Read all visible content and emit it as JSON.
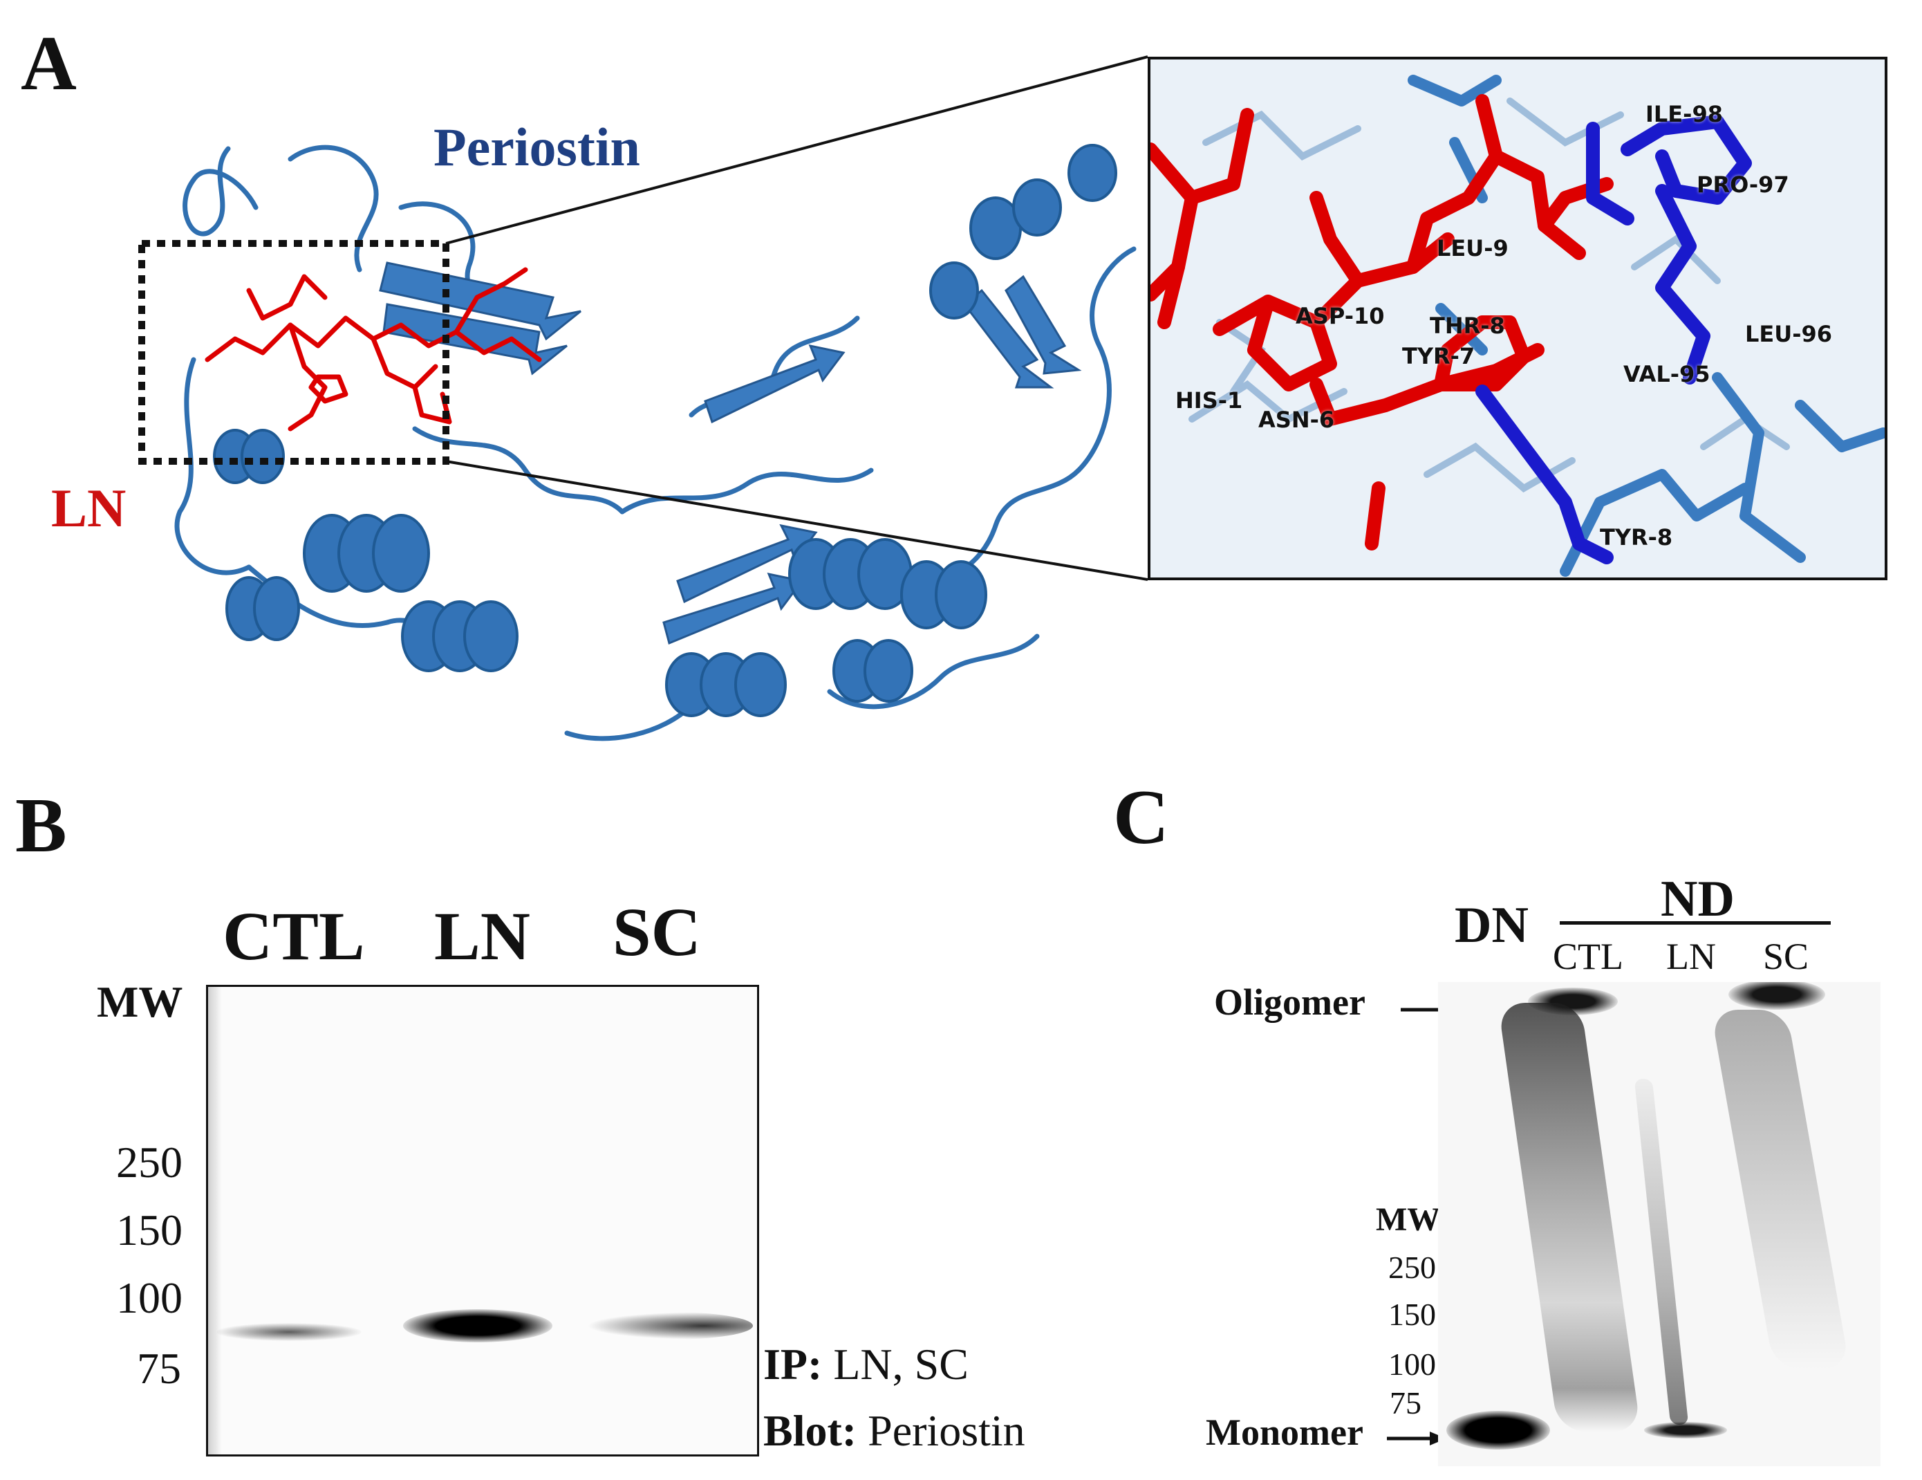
{
  "panelA": {
    "letter": "A",
    "protein_label": "Periostin",
    "ligand_label": "LN",
    "colors": {
      "protein": "#2f6fb0",
      "ligand": "#dd0000",
      "interacting": "#1a1acc",
      "protein_label": "#1f3f82",
      "ligand_label": "#cc1111"
    },
    "residues": {
      "ile98": "ILE-98",
      "pro97": "PRO-97",
      "leu9": "LEU-9",
      "asp10": "ASP-10",
      "thr8": "THR-8",
      "leu96": "LEU-96",
      "tyr7": "TYR-7",
      "val95": "VAL-95",
      "his": "HIS-1",
      "asn6": "ASN-6",
      "tyr8": "TYR-8"
    }
  },
  "panelB": {
    "letter": "B",
    "lanes": [
      "CTL",
      "LN",
      "SC"
    ],
    "mw_title": "MW",
    "mw_markers": [
      "250",
      "150",
      "100",
      "75"
    ],
    "ip_key": "IP:",
    "ip_value": "LN, SC",
    "blot_key": "Blot:",
    "blot_value": "Periostin"
  },
  "panelC": {
    "letter": "C",
    "dn_label": "DN",
    "nd_label": "ND",
    "lanes": [
      "CTL",
      "LN",
      "SC"
    ],
    "mw_title": "MW",
    "mw_markers": [
      "250",
      "150",
      "100",
      "75"
    ],
    "oligomer_label": "Oligomer",
    "monomer_label": "Monomer"
  }
}
